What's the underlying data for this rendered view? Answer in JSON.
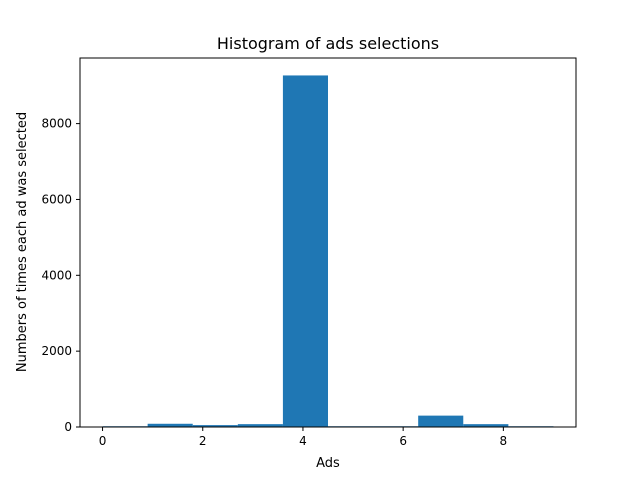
{
  "chart_data": {
    "type": "bar",
    "title": "Histogram of ads selections",
    "xlabel": "Ads",
    "ylabel": "Numbers of times each ad was selected",
    "xlim": [
      -0.45,
      9.45
    ],
    "ylim": [
      0,
      9730
    ],
    "xticks": [
      0,
      2,
      4,
      6,
      8
    ],
    "yticks": [
      0,
      2000,
      4000,
      6000,
      8000
    ],
    "bin_edges": [
      0,
      0.9,
      1.8,
      2.7,
      3.6,
      4.5,
      5.4,
      6.3,
      7.2,
      8.1,
      9.0
    ],
    "values": [
      20,
      85,
      50,
      75,
      9270,
      20,
      20,
      300,
      75,
      20
    ],
    "bar_color": "#1f77b4",
    "grid": false,
    "legend": "none"
  }
}
